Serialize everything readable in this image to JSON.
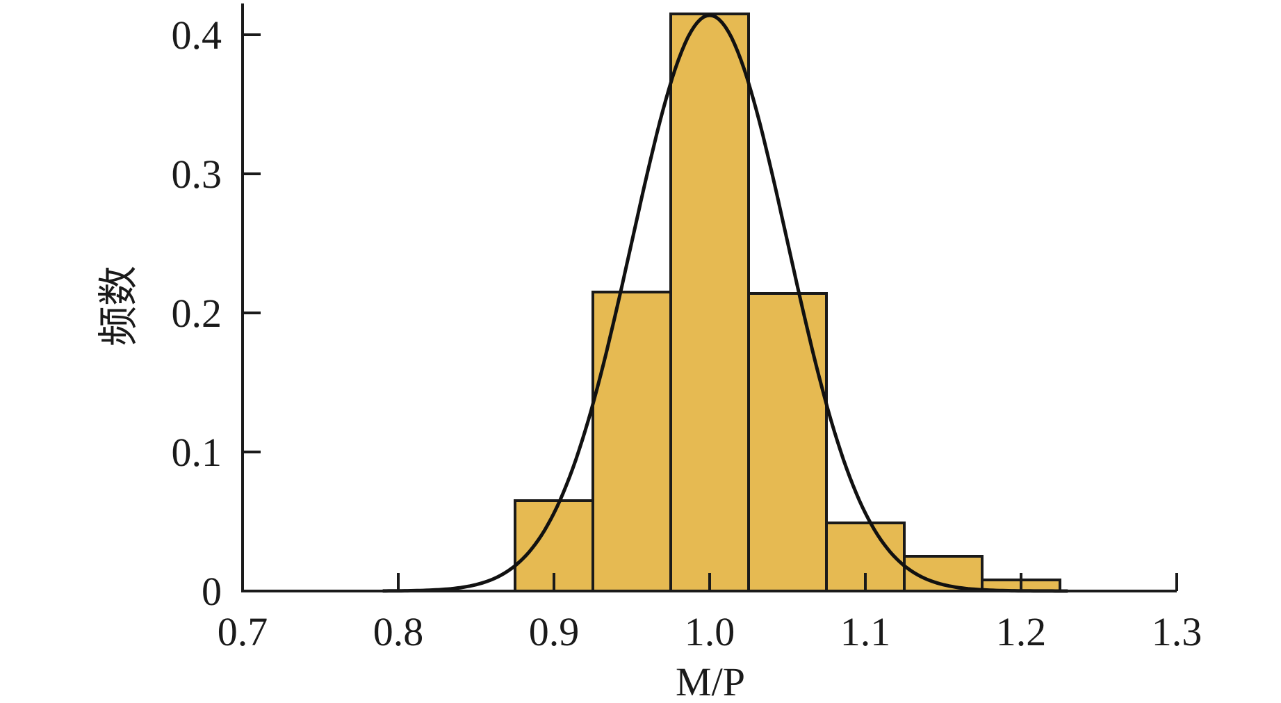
{
  "chart_data": {
    "type": "bar",
    "title": "",
    "xlabel": "M/P",
    "ylabel": "频数",
    "xlim": [
      0.7,
      1.3
    ],
    "ylim": [
      0,
      0.4
    ],
    "x_ticks": [
      "0.7",
      "0.8",
      "0.9",
      "1.0",
      "1.1",
      "1.2",
      "1.3"
    ],
    "y_ticks": [
      "0",
      "0.1",
      "0.2",
      "0.3",
      "0.4"
    ],
    "bins": [
      {
        "start": 0.875,
        "end": 0.925,
        "value": 0.065
      },
      {
        "start": 0.925,
        "end": 0.975,
        "value": 0.215
      },
      {
        "start": 0.975,
        "end": 1.025,
        "value": 0.415
      },
      {
        "start": 1.025,
        "end": 1.075,
        "value": 0.214
      },
      {
        "start": 1.075,
        "end": 1.125,
        "value": 0.049
      },
      {
        "start": 1.125,
        "end": 1.175,
        "value": 0.025
      },
      {
        "start": 1.175,
        "end": 1.225,
        "value": 0.008
      }
    ],
    "fit_curve": {
      "type": "normal",
      "mean": 1.0,
      "sd": 0.05,
      "peak": 0.414,
      "x_range": [
        0.79,
        1.23
      ]
    },
    "colors": {
      "bar_fill": "#E6BA52",
      "bar_stroke": "#1a1a1a",
      "curve": "#111111",
      "axis": "#1a1a1a"
    },
    "grid": false
  }
}
